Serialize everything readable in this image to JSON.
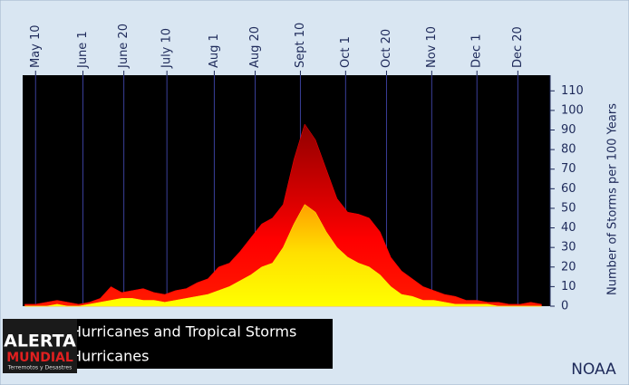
{
  "chart_data": {
    "type": "area",
    "y_label": "Number of Storms per 100 Years",
    "source": "NOAA",
    "watermark": [
      "ALERTA",
      "MUNDIAL",
      "Terremotos y Desastres"
    ],
    "x": [
      125,
      130,
      135,
      140,
      145,
      150,
      155,
      160,
      165,
      170,
      175,
      180,
      185,
      190,
      195,
      200,
      205,
      210,
      215,
      220,
      225,
      230,
      235,
      240,
      245,
      250,
      255,
      260,
      265,
      270,
      275,
      280,
      285,
      290,
      295,
      300,
      305,
      310,
      315,
      320,
      325,
      330,
      335,
      340,
      345,
      350,
      355,
      360,
      365
    ],
    "series": [
      {
        "name": "Hurricanes and Tropical Storms",
        "color": "#ff0000",
        "values": [
          1,
          1,
          2,
          3,
          2,
          1,
          2,
          4,
          10,
          7,
          8,
          9,
          7,
          6,
          8,
          9,
          12,
          14,
          20,
          22,
          28,
          35,
          42,
          45,
          52,
          75,
          93,
          85,
          70,
          55,
          48,
          47,
          45,
          38,
          25,
          18,
          14,
          10,
          8,
          6,
          5,
          3,
          3,
          2,
          2,
          1,
          1,
          2,
          1
        ]
      },
      {
        "name": "Hurricanes",
        "color": "#ffff00",
        "values": [
          0,
          0,
          0,
          1,
          0,
          0,
          1,
          2,
          3,
          4,
          4,
          3,
          3,
          2,
          3,
          4,
          5,
          6,
          8,
          10,
          13,
          16,
          20,
          22,
          30,
          42,
          52,
          48,
          38,
          30,
          25,
          22,
          20,
          16,
          10,
          6,
          5,
          3,
          3,
          2,
          1,
          1,
          1,
          1,
          0,
          0,
          0,
          0,
          0
        ]
      }
    ],
    "xlim": [
      124,
      369
    ],
    "xticks": [
      {
        "value": 130,
        "label": "May 10"
      },
      {
        "value": 152,
        "label": "June 1"
      },
      {
        "value": 171,
        "label": "June 20"
      },
      {
        "value": 191,
        "label": "July 10"
      },
      {
        "value": 213,
        "label": "Aug 1"
      },
      {
        "value": 232,
        "label": "Aug 20"
      },
      {
        "value": 253,
        "label": "Sept 10"
      },
      {
        "value": 274,
        "label": "Oct 1"
      },
      {
        "value": 293,
        "label": "Oct 20"
      },
      {
        "value": 314,
        "label": "Nov 10"
      },
      {
        "value": 335,
        "label": "Dec 1"
      },
      {
        "value": 354,
        "label": "Dec 20"
      }
    ],
    "ylim": [
      0,
      118
    ],
    "yticks": [
      0,
      10,
      20,
      30,
      40,
      50,
      60,
      70,
      80,
      90,
      100,
      110
    ],
    "grid": true,
    "legend": "bottom-left"
  }
}
